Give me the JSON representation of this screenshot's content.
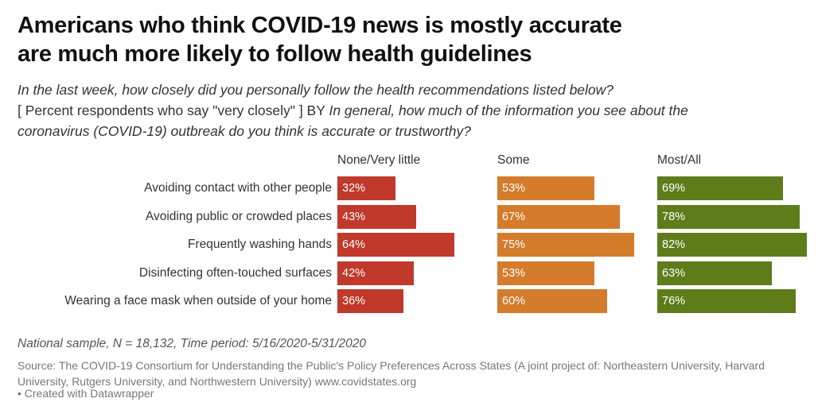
{
  "title_line1": "Americans who think COVID-19 news is mostly accurate",
  "title_line2": "are much more likely to follow health guidelines",
  "subtitle": {
    "line1_italic": "In the last week, how closely did you personally follow the health recommendations listed below?",
    "line2_prefix": "[ Percent respondents who say \"very closely\" ] BY ",
    "line2_italic": "In general, how much of the information you see about the",
    "line3_italic": "coronavirus (COVID-19) outbreak do you think is accurate or trustworthy?"
  },
  "chart_data": {
    "type": "bar",
    "categories": [
      "Avoiding contact with other people",
      "Avoiding public or crowded places",
      "Frequently washing hands",
      "Disinfecting often-touched surfaces",
      "Wearing a face mask when outside of your home"
    ],
    "series": [
      {
        "name": "None/Very little",
        "color": "#c0392b",
        "values": [
          32,
          43,
          64,
          42,
          36
        ]
      },
      {
        "name": "Some",
        "color": "#d47c2c",
        "values": [
          53,
          67,
          75,
          53,
          60
        ]
      },
      {
        "name": "Most/All",
        "color": "#5e7d1a",
        "values": [
          69,
          78,
          82,
          63,
          76
        ]
      }
    ],
    "value_suffix": "%",
    "xlim": [
      0,
      82
    ]
  },
  "note": "National sample, N = 18,132, Time period: 5/16/2020-5/31/2020",
  "source": "Source: The COVID-19 Consortium for Understanding the Public's Policy Preferences Across States (A joint project of: Northeastern University, Harvard University, Rutgers University, and Northwestern University) www.covidstates.org",
  "credit": "• Created with Datawrapper"
}
